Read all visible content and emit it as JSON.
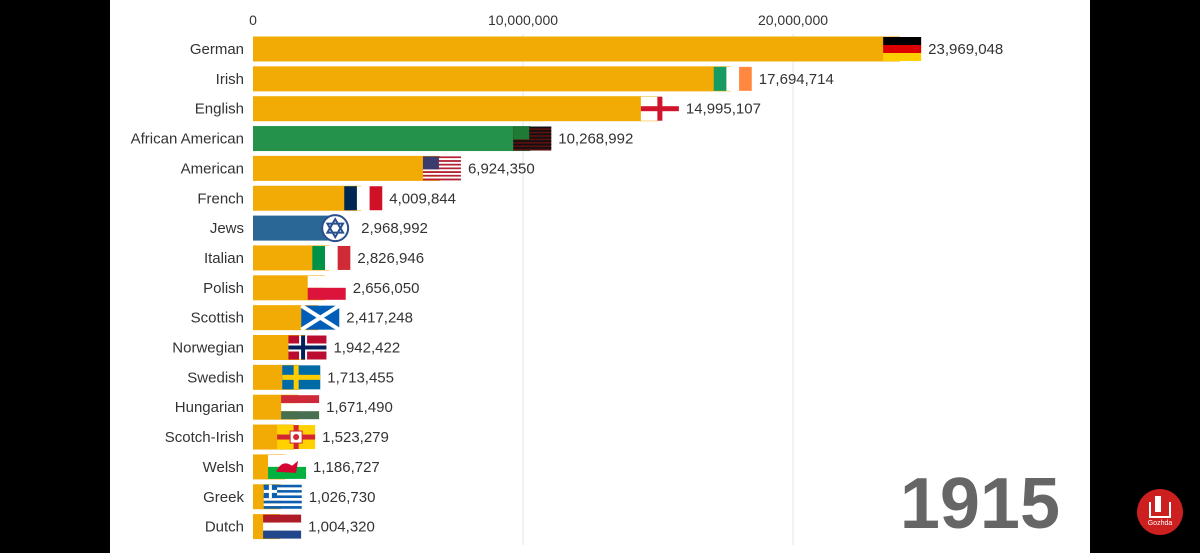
{
  "chart_data": {
    "type": "bar",
    "orientation": "horizontal",
    "title": "",
    "xlabel": "",
    "ylabel": "",
    "year": "1915",
    "xlim": [
      0,
      24000000
    ],
    "x_ticks": [
      {
        "value": 0,
        "label": "0"
      },
      {
        "value": 10000000,
        "label": "10,000,000"
      },
      {
        "value": 20000000,
        "label": "20,000,000"
      }
    ],
    "grid": true,
    "legend": "none",
    "bars": [
      {
        "category": "German",
        "value": 23969048,
        "value_label": "23,969,048",
        "color": "#f2ab05",
        "flag": "germany-flag"
      },
      {
        "category": "Irish",
        "value": 17694714,
        "value_label": "17,694,714",
        "color": "#f2ab05",
        "flag": "ireland-flag"
      },
      {
        "category": "English",
        "value": 14995107,
        "value_label": "14,995,107",
        "color": "#f2ab05",
        "flag": "england-flag"
      },
      {
        "category": "African American",
        "value": 10268992,
        "value_label": "10,268,992",
        "color": "#24924a",
        "flag": "african-american-flag"
      },
      {
        "category": "American",
        "value": 6924350,
        "value_label": "6,924,350",
        "color": "#f2ab05",
        "flag": "usa-flag"
      },
      {
        "category": "French",
        "value": 4009844,
        "value_label": "4,009,844",
        "color": "#f2ab05",
        "flag": "france-flag"
      },
      {
        "category": "Jews",
        "value": 2968992,
        "value_label": "2,968,992",
        "color": "#2a6796",
        "flag": "star-of-david-flag"
      },
      {
        "category": "Italian",
        "value": 2826946,
        "value_label": "2,826,946",
        "color": "#f2ab05",
        "flag": "italy-flag"
      },
      {
        "category": "Polish",
        "value": 2656050,
        "value_label": "2,656,050",
        "color": "#f2ab05",
        "flag": "poland-flag"
      },
      {
        "category": "Scottish",
        "value": 2417248,
        "value_label": "2,417,248",
        "color": "#f2ab05",
        "flag": "scotland-flag"
      },
      {
        "category": "Norwegian",
        "value": 1942422,
        "value_label": "1,942,422",
        "color": "#f2ab05",
        "flag": "norway-flag"
      },
      {
        "category": "Swedish",
        "value": 1713455,
        "value_label": "1,713,455",
        "color": "#f2ab05",
        "flag": "sweden-flag"
      },
      {
        "category": "Hungarian",
        "value": 1671490,
        "value_label": "1,671,490",
        "color": "#f2ab05",
        "flag": "hungary-flag"
      },
      {
        "category": "Scotch-Irish",
        "value": 1523279,
        "value_label": "1,523,279",
        "color": "#f2ab05",
        "flag": "ulster-flag"
      },
      {
        "category": "Welsh",
        "value": 1186727,
        "value_label": "1,186,727",
        "color": "#f2ab05",
        "flag": "wales-flag"
      },
      {
        "category": "Greek",
        "value": 1026730,
        "value_label": "1,026,730",
        "color": "#f2ab05",
        "flag": "greece-flag"
      },
      {
        "category": "Dutch",
        "value": 1004320,
        "value_label": "1,004,320",
        "color": "#f2ab05",
        "flag": "netherlands-flag"
      }
    ]
  },
  "channel": {
    "logo_text": "Gozhda",
    "logo_icon": "gozhda-logo-icon",
    "color": "#cc1f1f"
  }
}
